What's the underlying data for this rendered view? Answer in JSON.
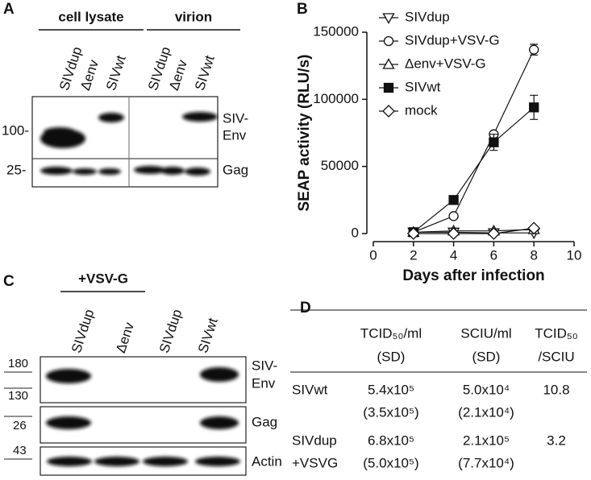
{
  "panel_a": {
    "label": "A",
    "groups": [
      "cell lysate",
      "virion"
    ],
    "lanes": [
      "SIVdup",
      "Δenv",
      "SIVwt",
      "SIVdup",
      "Δenv",
      "SIVwt"
    ],
    "markers": [
      "100-",
      "25-"
    ],
    "rows": [
      [
        "SIV-",
        "Env"
      ],
      [
        "Gag"
      ]
    ]
  },
  "chart_data": {
    "type": "line",
    "panel_label": "B",
    "xlabel": "Days after infection",
    "ylabel": "SEAP activity (RLU/s)",
    "x": [
      2,
      4,
      6,
      8
    ],
    "series": [
      {
        "name": "SIVdup",
        "color": "#111111",
        "marker": "triangle-down",
        "filled": false,
        "values": [
          1000,
          1000,
          500,
          500
        ]
      },
      {
        "name": "SIVdup+VSV-G",
        "color": "#111111",
        "marker": "circle",
        "filled": false,
        "values": [
          1000,
          13000,
          74000,
          137000
        ],
        "errors": [
          null,
          null,
          null,
          4000
        ]
      },
      {
        "name": "Δenv+VSV-G",
        "color": "#111111",
        "marker": "triangle-up",
        "filled": false,
        "values": [
          1000,
          2000,
          2000,
          3000
        ]
      },
      {
        "name": "SIVwt",
        "color": "#111111",
        "marker": "square",
        "filled": true,
        "values": [
          1000,
          25000,
          68000,
          94000
        ],
        "errors": [
          null,
          3000,
          6000,
          9000
        ]
      },
      {
        "name": "mock",
        "color": "#111111",
        "marker": "diamond",
        "filled": false,
        "values": [
          0,
          0,
          0,
          4000
        ]
      }
    ],
    "xlim": [
      0,
      10
    ],
    "xticks": [
      0,
      2,
      4,
      6,
      8,
      10
    ],
    "ylim": [
      0,
      150000
    ],
    "yticks": [
      0,
      50000,
      100000,
      150000
    ],
    "legend": "upper-left",
    "grid": false
  },
  "panel_c": {
    "label": "C",
    "group": "+VSV-G",
    "lanes": [
      "SIVdup",
      "Δenv",
      "SIVdup",
      "SIVwt"
    ],
    "markers": [
      "180",
      "130",
      "26",
      "43"
    ],
    "rows": [
      [
        "SIV-",
        "Env"
      ],
      [
        "Gag"
      ],
      [
        "Actin"
      ]
    ]
  },
  "panel_d": {
    "label": "D",
    "table": {
      "header": [
        [
          "TCID₅₀/ml",
          "(SD)"
        ],
        [
          "SCIU/ml",
          "(SD)"
        ],
        [
          "TCID₅₀",
          "/SCIU"
        ]
      ],
      "rows": [
        [
          [
            "SIVwt"
          ],
          [
            "5.4x10⁵",
            "(3.5x10⁵)"
          ],
          [
            "5.0x10⁴",
            "(2.1x10⁴)"
          ],
          [
            "10.8"
          ]
        ],
        [
          [
            "SIVdup",
            "+VSVG"
          ],
          [
            "6.8x10⁵",
            "(5.0x10⁵)"
          ],
          [
            "2.1x10⁵",
            "(7.7x10⁴)"
          ],
          [
            "3.2"
          ]
        ]
      ]
    }
  }
}
